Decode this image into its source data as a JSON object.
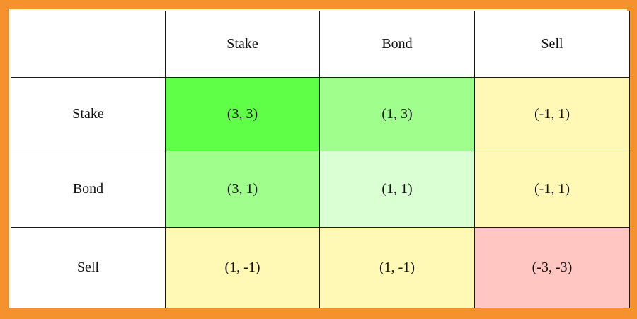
{
  "colors": {
    "frame": "#f5922e",
    "best": "#5eff46",
    "good": "#a0ff8c",
    "fair": "#daffd2",
    "neutral": "#fff9b5",
    "bad": "#ffc6c2"
  },
  "matrix": {
    "columns": [
      "Stake",
      "Bond",
      "Sell"
    ],
    "rows": [
      {
        "label": "Stake",
        "cells": [
          {
            "payoff": "(3, 3)",
            "color": "#5eff46"
          },
          {
            "payoff": "(1, 3)",
            "color": "#a0ff8c"
          },
          {
            "payoff": "(-1, 1)",
            "color": "#fff9b5"
          }
        ]
      },
      {
        "label": "Bond",
        "cells": [
          {
            "payoff": "(3, 1)",
            "color": "#a0ff8c"
          },
          {
            "payoff": "(1, 1)",
            "color": "#daffd2"
          },
          {
            "payoff": "(-1, 1)",
            "color": "#fff9b5"
          }
        ]
      },
      {
        "label": "Sell",
        "cells": [
          {
            "payoff": "(1, -1)",
            "color": "#fff9b5"
          },
          {
            "payoff": "(1, -1)",
            "color": "#fff9b5"
          },
          {
            "payoff": "(-3, -3)",
            "color": "#ffc6c2"
          }
        ]
      }
    ]
  }
}
